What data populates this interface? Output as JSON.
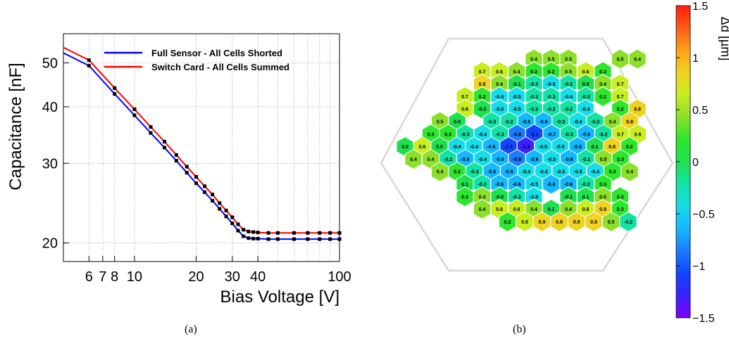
{
  "panels": [
    {
      "caption": "(a)"
    },
    {
      "caption": "(b)"
    }
  ],
  "chart_data": [
    {
      "type": "line",
      "xlabel": "Bias Voltage [V]",
      "ylabel": "Capacitance [nF]",
      "x_scale": "log",
      "y_scale": "log",
      "xlim": [
        4.5,
        100
      ],
      "ylim": [
        18.2,
        58
      ],
      "x_ticks": [
        6,
        7,
        8,
        10,
        20,
        30,
        40,
        100
      ],
      "x_tick_labels": [
        "6",
        "7",
        "8",
        "10",
        "20",
        "30",
        "40",
        "100"
      ],
      "y_ticks": [
        20,
        30,
        40,
        50
      ],
      "y_tick_labels": [
        "20",
        "30",
        "40",
        "50"
      ],
      "grid": true,
      "legend": "top-right",
      "x": [
        4.5,
        6,
        8,
        10,
        12,
        14,
        16,
        18,
        20,
        22,
        24,
        26,
        28,
        30,
        32,
        34,
        36,
        38,
        40,
        45,
        50,
        60,
        70,
        80,
        90,
        100
      ],
      "series": [
        {
          "name": "Full Sensor - All Cells Shorted",
          "color": "#0000ff",
          "values": [
            52.6,
            49.3,
            42.7,
            38.3,
            35.0,
            32.5,
            30.4,
            28.6,
            27.1,
            25.9,
            24.8,
            23.8,
            22.9,
            22.1,
            21.3,
            20.7,
            20.5,
            20.45,
            20.45,
            20.4,
            20.4,
            20.4,
            20.4,
            20.4,
            20.4,
            20.4
          ]
        },
        {
          "name": "Switch Card - All Cells Summed",
          "color": "#ff0000",
          "values": [
            54.1,
            50.7,
            44.0,
            39.5,
            36.1,
            33.5,
            31.3,
            29.5,
            28.0,
            26.7,
            25.6,
            24.5,
            23.6,
            22.8,
            22.0,
            21.4,
            21.2,
            21.15,
            21.1,
            21.05,
            21.05,
            21.05,
            21.05,
            21.05,
            21.05,
            21.05
          ]
        }
      ],
      "marker_color": "#000000"
    },
    {
      "type": "heatmap",
      "shape": "hexagonal-cell-map",
      "colorbar_label": "Δd [µm]",
      "colorbar_range": [
        -1.5,
        1.5
      ],
      "colorbar_ticks": [
        1.5,
        1,
        0.5,
        0,
        -0.5,
        -1,
        -1.5
      ],
      "colorbar_tick_labels": [
        "1.5",
        "1",
        "0.5",
        "0",
        "−0.5",
        "−1",
        "−1.5"
      ],
      "rows": [
        [
          null,
          null,
          null,
          null,
          0.4,
          0.5,
          0.5,
          null,
          null,
          0.5,
          0.4,
          -0.0,
          null,
          null,
          null,
          null,
          null
        ],
        [
          null,
          null,
          null,
          0.7,
          0.6,
          0.4,
          0.2,
          0.2,
          0.5,
          0.6,
          0.3,
          null,
          null,
          null,
          null,
          null
        ],
        [
          null,
          null,
          null,
          0.8,
          0.4,
          -0.1,
          -0.3,
          -0.5,
          -0.2,
          0.0,
          0.4,
          0.7,
          null,
          null,
          null,
          null,
          null
        ],
        [
          null,
          null,
          0.7,
          0.2,
          -0.4,
          -0.5,
          -0.3,
          -0.3,
          -0.4,
          -0.3,
          0.2,
          0.7,
          null,
          null,
          null,
          null
        ],
        [
          null,
          null,
          0.6,
          -0.0,
          -0.5,
          -0.5,
          -0.3,
          -0.2,
          -0.2,
          -0.4,
          null,
          0.2,
          0.8,
          null,
          null,
          null,
          null
        ],
        [
          null,
          0.5,
          0.0,
          null,
          -0.3,
          -0.2,
          -0.6,
          -0.6,
          -0.3,
          -0.4,
          -0.3,
          0.4,
          0.8,
          null,
          null,
          null
        ],
        [
          null,
          0.3,
          0.3,
          -0.3,
          -0.4,
          -0.3,
          -0.8,
          -1.1,
          -0.7,
          -0.3,
          -0.6,
          -0.2,
          0.7,
          0.6,
          null,
          null,
          null
        ],
        [
          0.0,
          0.6,
          0.0,
          -0.4,
          -0.4,
          -0.6,
          -1.1,
          -1.2,
          -0.5,
          -0.5,
          -0.6,
          0.1,
          0.8,
          0.2,
          null,
          null
        ],
        [
          0.4,
          0.4,
          -0.2,
          -0.6,
          -0.4,
          -0.6,
          -0.8,
          -0.6,
          -0.5,
          -0.6,
          -0.3,
          0.5,
          0.3,
          null,
          null,
          null,
          null
        ],
        [
          null,
          0.4,
          0.2,
          -0.3,
          -0.6,
          -0.6,
          -0.4,
          -0.4,
          -0.5,
          -0.5,
          -0.4,
          0.3,
          0.4,
          null,
          null,
          null
        ],
        [
          null,
          null,
          0.1,
          -0.3,
          -0.6,
          -0.6,
          -0.5,
          -0.6,
          -0.6,
          -0.2,
          0.3,
          null,
          null,
          null,
          null,
          null,
          null
        ],
        [
          null,
          null,
          0.3,
          0.4,
          -0.0,
          -0.3,
          -0.5,
          null,
          -0.1,
          0.1,
          0.5,
          0.3,
          null,
          null,
          null,
          null
        ],
        [
          null,
          null,
          null,
          0.4,
          0.6,
          0.6,
          0.4,
          0.1,
          0.4,
          0.6,
          0.9,
          0.3,
          null,
          null,
          null,
          null,
          null
        ],
        [
          null,
          null,
          null,
          0.2,
          0.6,
          0.9,
          0.8,
          0.9,
          0.8,
          0.5,
          -0.2,
          null,
          null,
          null,
          null,
          null
        ]
      ]
    }
  ]
}
